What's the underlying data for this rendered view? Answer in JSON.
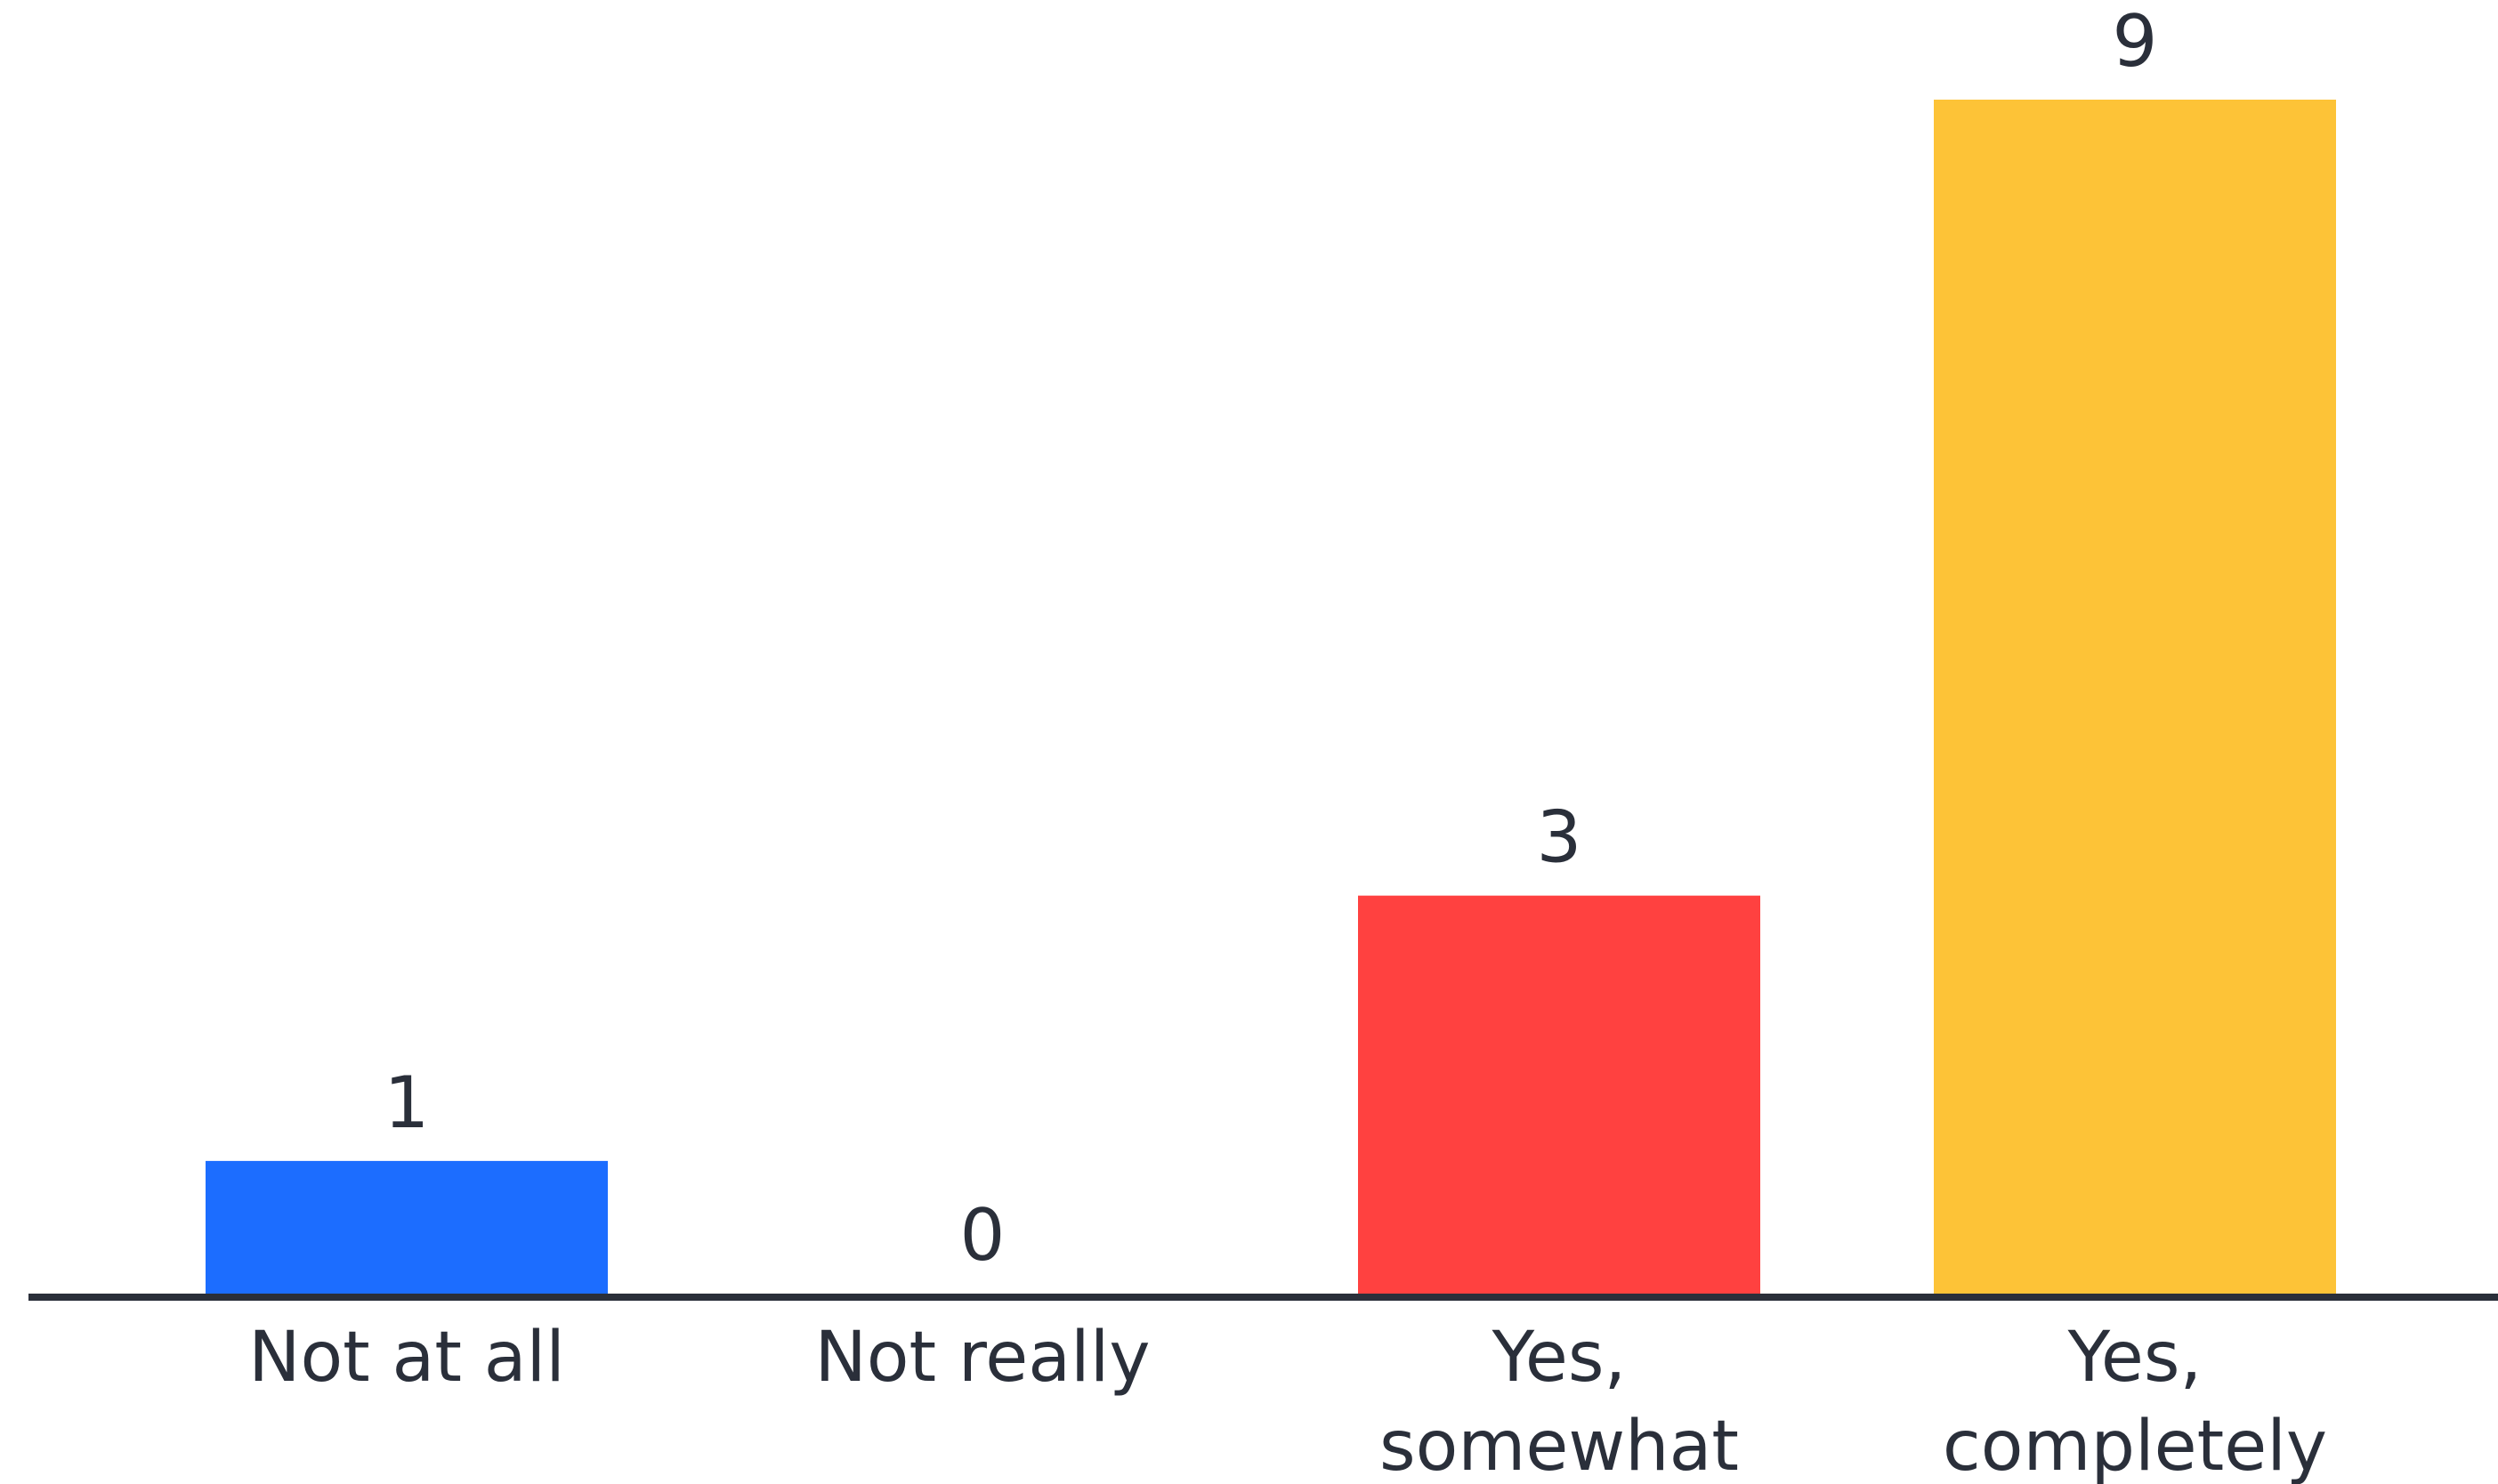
{
  "chart_data": {
    "type": "bar",
    "categories": [
      [
        "Not at all"
      ],
      [
        "Not really"
      ],
      [
        "Yes,",
        "somewhat"
      ],
      [
        "Yes,",
        "completely"
      ]
    ],
    "values": [
      1,
      0,
      3,
      9
    ],
    "value_labels": [
      "1",
      "0",
      "3",
      "9"
    ],
    "colors": [
      "#1c6dff",
      "#1c6dff",
      "#ff4140",
      "#fdc337"
    ],
    "axis_color": "#2a2f3a",
    "ylim": [
      0,
      9
    ],
    "grid": false,
    "legend": "none"
  }
}
